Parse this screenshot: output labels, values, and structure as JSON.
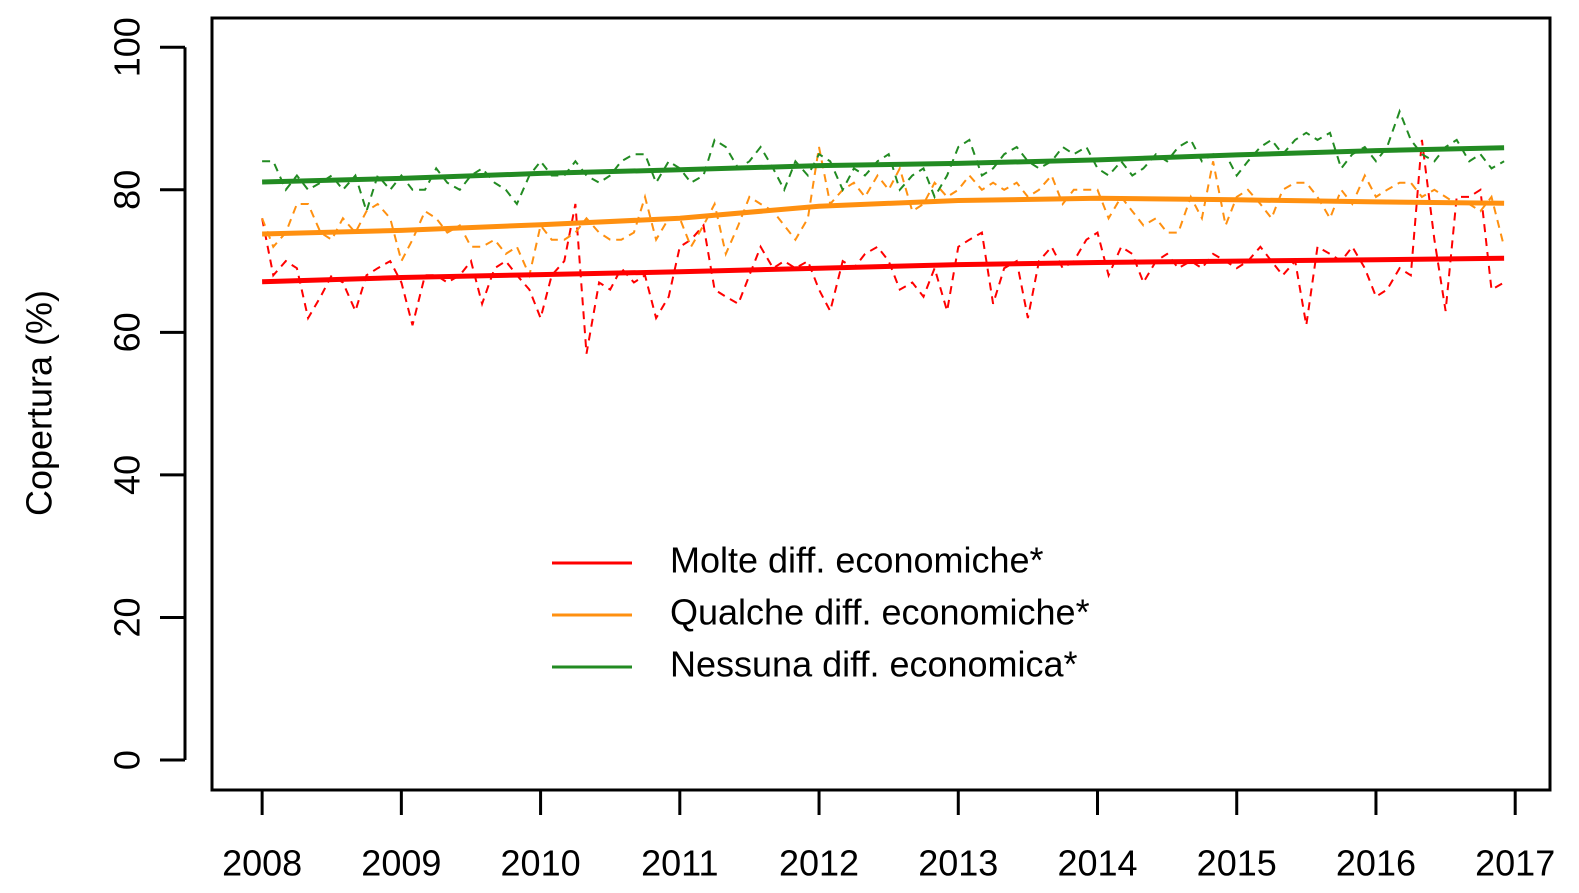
{
  "chart_data": {
    "type": "line",
    "ylabel": "Copertura (%)",
    "xlim": [
      2007.64,
      2017.25
    ],
    "ylim": [
      -4.2,
      104.1
    ],
    "xticks": [
      2008,
      2009,
      2010,
      2011,
      2012,
      2013,
      2014,
      2015,
      2016,
      2017
    ],
    "yticks": [
      0,
      20,
      40,
      60,
      80,
      100
    ],
    "legend_position": "bottom-center",
    "x": [
      2008,
      2008.08,
      2008.17,
      2008.25,
      2008.33,
      2008.42,
      2008.5,
      2008.58,
      2008.67,
      2008.75,
      2008.83,
      2008.92,
      2009,
      2009.08,
      2009.17,
      2009.25,
      2009.33,
      2009.42,
      2009.5,
      2009.58,
      2009.67,
      2009.75,
      2009.83,
      2009.92,
      2010,
      2010.08,
      2010.17,
      2010.25,
      2010.33,
      2010.42,
      2010.5,
      2010.58,
      2010.67,
      2010.75,
      2010.83,
      2010.92,
      2011,
      2011.08,
      2011.17,
      2011.25,
      2011.33,
      2011.42,
      2011.5,
      2011.58,
      2011.67,
      2011.75,
      2011.83,
      2011.92,
      2012,
      2012.08,
      2012.17,
      2012.25,
      2012.33,
      2012.42,
      2012.5,
      2012.58,
      2012.67,
      2012.75,
      2012.83,
      2012.92,
      2013,
      2013.08,
      2013.17,
      2013.25,
      2013.33,
      2013.42,
      2013.5,
      2013.58,
      2013.67,
      2013.75,
      2013.83,
      2013.92,
      2014,
      2014.08,
      2014.17,
      2014.25,
      2014.33,
      2014.42,
      2014.5,
      2014.58,
      2014.67,
      2014.75,
      2014.83,
      2014.92,
      2015,
      2015.08,
      2015.17,
      2015.25,
      2015.33,
      2015.42,
      2015.5,
      2015.58,
      2015.67,
      2015.75,
      2015.83,
      2015.92,
      2016,
      2016.08,
      2016.17,
      2016.25,
      2016.33,
      2016.42,
      2016.5,
      2016.58,
      2016.67,
      2016.75,
      2016.83,
      2016.92
    ],
    "series": [
      {
        "name": "Molte diff. economiche*",
        "color": "#ff0000",
        "x": [
          2008,
          2009,
          2010,
          2011,
          2012,
          2013,
          2014,
          2015,
          2016,
          2016.92
        ],
        "values": [
          67.1,
          67.7,
          68.1,
          68.5,
          69,
          69.5,
          69.8,
          70,
          70.2,
          70.4
        ],
        "monthly_values": [
          76,
          68,
          70,
          69,
          62,
          65,
          68,
          67,
          63,
          68,
          69,
          70,
          67,
          61,
          68,
          68,
          67,
          68,
          70,
          64,
          69,
          70,
          68,
          66,
          62,
          68,
          70,
          78,
          57,
          67,
          66,
          69,
          67,
          68,
          62,
          65,
          72,
          73,
          75,
          66,
          65,
          64,
          68,
          72,
          69,
          70,
          69,
          70,
          66,
          63,
          70,
          69,
          71,
          72,
          70,
          66,
          67,
          65,
          69,
          63,
          72,
          73,
          74,
          64,
          69,
          70,
          62,
          70,
          72,
          69,
          70,
          73,
          74,
          68,
          72,
          71,
          67,
          70,
          71,
          69,
          70,
          69,
          71,
          70,
          69,
          70,
          72,
          70,
          68,
          70,
          61,
          72,
          71,
          70,
          72,
          69,
          65,
          66,
          69,
          68,
          87,
          73,
          63,
          79,
          79,
          80,
          66,
          67
        ]
      },
      {
        "name": "Qualche diff. economiche*",
        "color": "#ff9010",
        "x": [
          2008,
          2009,
          2010,
          2011,
          2012,
          2013,
          2014,
          2015,
          2016,
          2016.92
        ],
        "values": [
          73.8,
          74.3,
          75.1,
          76,
          77.7,
          78.5,
          78.8,
          78.6,
          78.3,
          78.1
        ],
        "monthly_values": [
          76,
          72,
          74,
          78,
          78,
          74,
          73,
          76,
          74,
          77,
          78,
          76,
          70,
          73,
          77,
          76,
          74,
          75,
          72,
          72,
          73,
          71,
          72,
          68,
          75,
          73,
          73,
          74,
          76,
          74,
          73,
          73,
          74,
          79,
          73,
          76,
          76,
          72,
          75,
          78,
          71,
          75,
          79,
          78,
          77,
          75,
          73,
          76,
          86,
          78,
          80,
          81,
          79,
          82,
          80,
          83,
          77,
          78,
          81,
          79,
          80,
          82,
          80,
          81,
          80,
          81,
          79,
          80,
          82,
          78,
          80,
          80,
          80,
          76,
          79,
          77,
          75,
          76,
          74,
          74,
          79,
          76,
          84,
          75,
          79,
          80,
          78,
          76,
          80,
          81,
          81,
          79,
          76,
          80,
          78,
          82,
          79,
          80,
          81,
          81,
          79,
          80,
          79,
          78,
          78,
          77,
          79,
          72
        ]
      },
      {
        "name": "Nessuna diff. economica*",
        "color": "#228b22",
        "x": [
          2008,
          2009,
          2010,
          2011,
          2012,
          2013,
          2014,
          2015,
          2016,
          2016.92
        ],
        "values": [
          81.1,
          81.6,
          82.3,
          82.8,
          83.4,
          83.7,
          84.2,
          84.9,
          85.5,
          85.9
        ],
        "monthly_values": [
          84,
          84,
          80,
          82,
          80,
          81,
          82,
          80,
          82,
          77,
          82,
          80,
          82,
          80,
          80,
          83,
          81,
          80,
          82,
          83,
          81,
          80,
          78,
          82,
          84,
          82,
          82,
          84,
          82,
          81,
          82,
          84,
          85,
          85,
          81,
          84,
          83,
          81,
          82,
          87,
          86,
          83,
          84,
          86,
          83,
          80,
          84,
          82,
          85,
          84,
          80,
          83,
          82,
          84,
          85,
          80,
          82,
          83,
          79,
          82,
          86,
          87,
          82,
          83,
          85,
          86,
          84,
          83,
          84,
          86,
          85,
          86,
          83,
          82,
          84,
          82,
          83,
          85,
          84,
          86,
          87,
          84,
          85,
          85,
          82,
          84,
          86,
          87,
          85,
          87,
          88,
          87,
          88,
          83,
          85,
          86,
          84,
          86,
          91,
          87,
          85,
          84,
          86,
          87,
          84,
          85,
          83,
          84
        ]
      }
    ]
  }
}
